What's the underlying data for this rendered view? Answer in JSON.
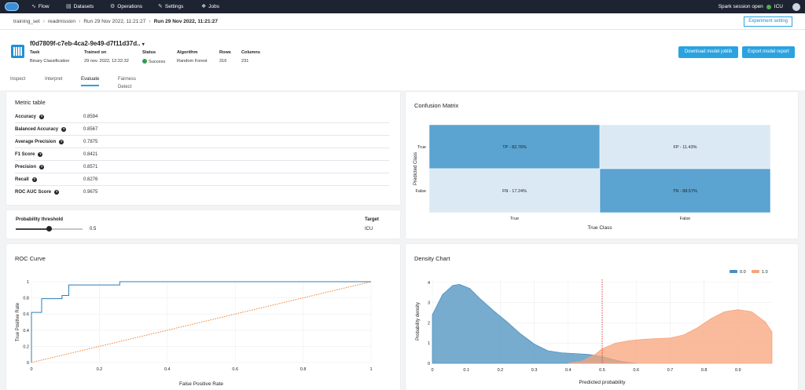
{
  "nav": {
    "items": [
      {
        "label": "Flow",
        "icon": "flow-icon"
      },
      {
        "label": "Datasets",
        "icon": "datasets-icon"
      },
      {
        "label": "Operations",
        "icon": "operations-icon"
      },
      {
        "label": "Settings",
        "icon": "settings-icon"
      },
      {
        "label": "Jobs",
        "icon": "jobs-icon"
      }
    ],
    "session_status": "Spark session open",
    "user": "ICU"
  },
  "breadcrumb": [
    "training_set",
    "readmission",
    "Run 29 Nov 2022, 11:21:27",
    "Run 29 Nov 2022, 11:21:27"
  ],
  "experiment_setting_label": "Experiment setting",
  "model": {
    "id": "f0d7809f-c7eb-4ca2-9e49-d7f11d37d..",
    "task_label": "Task",
    "task": "Binary Classification",
    "trained_label": "Trained on",
    "trained": "29 nov. 2022, 12:22:32",
    "status_label": "Status",
    "status": "Success",
    "algorithm_label": "Algorithm",
    "algorithm": "Random Forest",
    "rows_label": "Rows",
    "rows": "316",
    "columns_label": "Columns",
    "columns": "231"
  },
  "buttons": {
    "download": "Download model joblib",
    "export": "Export model report"
  },
  "tabs": [
    "Inspect",
    "Interpret",
    "Evaluate",
    "Fairness Detect"
  ],
  "metric_table": {
    "title": "Metric table",
    "rows": [
      {
        "name": "Accuracy",
        "value": "0.8594"
      },
      {
        "name": "Balanced Accuracy",
        "value": "0.8567"
      },
      {
        "name": "Average Precision",
        "value": "0.7875"
      },
      {
        "name": "F1 Score",
        "value": "0.8421"
      },
      {
        "name": "Precision",
        "value": "0.8571"
      },
      {
        "name": "Recall",
        "value": "0.8276"
      },
      {
        "name": "ROC AUC Score",
        "value": "0.9675"
      }
    ]
  },
  "threshold": {
    "label": "Probability threshold",
    "value": "0.5",
    "fraction": 0.5,
    "target_label": "Target",
    "target": "ICU"
  },
  "chart_data": [
    {
      "type": "heatmap",
      "title": "Confusion Matrix",
      "xlabel": "True Class",
      "ylabel": "Predicted Class",
      "x_categories": [
        "True",
        "False"
      ],
      "y_categories": [
        "True",
        "False"
      ],
      "cells": [
        [
          {
            "label": "TP - 82.76%",
            "value": 82.76
          },
          {
            "label": "FP - 11.43%",
            "value": 11.43
          }
        ],
        [
          {
            "label": "FN - 17.24%",
            "value": 17.24
          },
          {
            "label": "TN - 88.57%",
            "value": 88.57
          }
        ]
      ],
      "colors": {
        "high": "#5ba3d0",
        "low": "#dbe9f4"
      }
    },
    {
      "type": "line",
      "title": "ROC Curve",
      "xlabel": "False Positive Rate",
      "ylabel": "True Positive Rate",
      "xlim": [
        0,
        1
      ],
      "ylim": [
        0,
        1
      ],
      "x_ticks": [
        "0",
        "0.2",
        "0.4",
        "0.6",
        "0.8",
        "1"
      ],
      "y_ticks": [
        "0",
        "0.2",
        "0.4",
        "0.6",
        "0.8",
        "1"
      ],
      "series": [
        {
          "color": "#2f7fb8",
          "x": [
            0,
            0,
            0.03,
            0.03,
            0.09,
            0.09,
            0.11,
            0.11,
            0.26,
            0.26,
            0.94,
            1
          ],
          "y": [
            0,
            0.62,
            0.62,
            0.79,
            0.79,
            0.83,
            0.83,
            0.96,
            0.96,
            1,
            1,
            1
          ]
        },
        {
          "color": "#f07f2e",
          "dashed": true,
          "x": [
            0,
            1
          ],
          "y": [
            0,
            1
          ]
        }
      ]
    },
    {
      "type": "area",
      "title": "Density Chart",
      "xlabel": "Predicted probability",
      "ylabel": "Probability density",
      "xlim": [
        0,
        1
      ],
      "ylim": [
        0,
        4.15
      ],
      "x_ticks": [
        "0",
        "0.1",
        "0.2",
        "0.3",
        "0.4",
        "0.5",
        "0.6",
        "0.7",
        "0.8",
        "0.9"
      ],
      "y_ticks": [
        "0",
        "1",
        "2",
        "3",
        "4"
      ],
      "threshold": 0.5,
      "legend": "top-right",
      "series": [
        {
          "name": "0.0",
          "color": "#4a90bf",
          "x": [
            0,
            0.03,
            0.06,
            0.08,
            0.11,
            0.14,
            0.18,
            0.22,
            0.26,
            0.3,
            0.34,
            0.38,
            0.42,
            0.46,
            0.5,
            0.53,
            0.56,
            0.6
          ],
          "y": [
            2.4,
            3.4,
            3.85,
            3.9,
            3.7,
            3.2,
            2.6,
            2.05,
            1.45,
            0.95,
            0.62,
            0.52,
            0.48,
            0.44,
            0.33,
            0.2,
            0.08,
            0
          ]
        },
        {
          "name": "1.0",
          "color": "#f7a47a",
          "x": [
            0.4,
            0.44,
            0.48,
            0.5,
            0.54,
            0.58,
            0.62,
            0.66,
            0.7,
            0.74,
            0.78,
            0.82,
            0.86,
            0.9,
            0.94,
            0.98,
            1
          ],
          "y": [
            0,
            0.1,
            0.45,
            0.72,
            1.0,
            1.12,
            1.18,
            1.22,
            1.25,
            1.4,
            1.75,
            2.2,
            2.55,
            2.65,
            2.55,
            2.05,
            1.55
          ]
        }
      ]
    }
  ]
}
